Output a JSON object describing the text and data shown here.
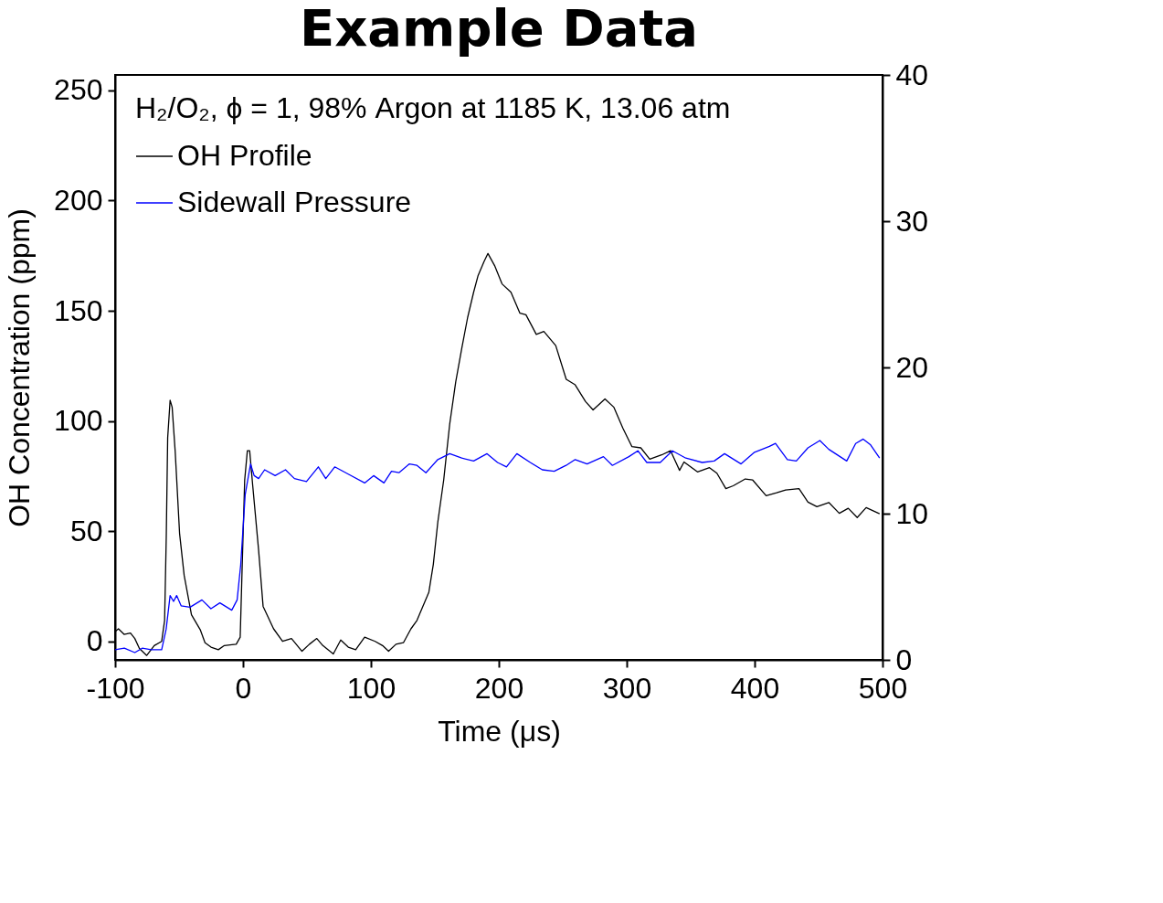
{
  "chart_data": {
    "type": "line",
    "title": "Example Data",
    "xlabel": "Time (μs)",
    "ylabel": "OH Concentration (ppm)",
    "legend_title": "H₂/O₂, ϕ = 1, 98% Argon at 1185 K, 13.06 atm",
    "legend": "top left",
    "line_style": "solid",
    "xlim": [
      -100,
      500
    ],
    "xticks": [
      -100,
      0,
      100,
      200,
      300,
      400,
      500
    ],
    "ylim": [
      -8.4,
      257
    ],
    "yticks": [
      0,
      50,
      100,
      150,
      200,
      250
    ],
    "y2lim": [
      0,
      40
    ],
    "y2ticks": [
      0,
      10,
      20,
      30,
      40
    ],
    "series": [
      {
        "name": "OH Profile",
        "color": "#000000",
        "x": [
          -100,
          -97.4,
          -93,
          -88,
          -84.6,
          -81,
          -75.3,
          -69.4,
          -63.6,
          -61.3,
          -60,
          -58.9,
          -57,
          -55.4,
          -53,
          -49.6,
          -46,
          -40.3,
          -33.3,
          -29.7,
          -25,
          -19.3,
          -14.6,
          -5.3,
          -2.2,
          -0.6,
          1.3,
          3.4,
          5.2,
          7.6,
          12.2,
          15.7,
          23.9,
          30.9,
          37.9,
          46.1,
          51.9,
          57.7,
          62.4,
          70.6,
          76.4,
          82.3,
          88.1,
          95.1,
          103.3,
          109.1,
          113.8,
          119.6,
          125.4,
          131.3,
          136,
          145.3,
          148.8,
          152.3,
          156.9,
          161.6,
          166.3,
          171,
          175.6,
          180.3,
          183.8,
          188.5,
          191.5,
          196.7,
          202.5,
          209.5,
          216.5,
          221.2,
          229.3,
          235.2,
          244.5,
          252.7,
          259.7,
          267.8,
          273.7,
          283,
          290,
          297,
          304,
          311,
          318,
          327.3,
          334.3,
          341.3,
          344.8,
          355.3,
          364.7,
          370.5,
          377.5,
          383.3,
          392.7,
          398.5,
          409,
          417.2,
          424.2,
          434.7,
          441.7,
          448.7,
          458,
          466.2,
          473.2,
          480.2,
          487.2,
          497.7
        ],
        "values": [
          4.5,
          5.7,
          3.2,
          3.8,
          1.3,
          -3.2,
          -6.4,
          -1.9,
          0,
          9.5,
          47.7,
          92.4,
          109.4,
          106.2,
          85.9,
          49,
          29.9,
          12.1,
          5.1,
          -0.6,
          -2.6,
          -3.8,
          -1.9,
          -1.3,
          1.9,
          35,
          73.2,
          86.5,
          86.5,
          70.6,
          41.3,
          15.9,
          5.7,
          0,
          1.3,
          -4.5,
          -1.3,
          1.3,
          -1.9,
          -5.7,
          0.6,
          -2.6,
          -3.8,
          1.9,
          0,
          -1.9,
          -4.5,
          -1.3,
          -0.6,
          5.7,
          9.5,
          22.3,
          35,
          54.1,
          73.2,
          98.6,
          117.7,
          132.9,
          146.9,
          158.4,
          166,
          172.4,
          176,
          170.5,
          162.2,
          158.4,
          148.9,
          148.2,
          139.3,
          140.6,
          134.2,
          118.9,
          116.4,
          108.8,
          105,
          110,
          106.2,
          96.7,
          88.4,
          87.8,
          82.7,
          84.6,
          86.5,
          77.6,
          81.4,
          76.9,
          78.8,
          76.3,
          69.3,
          70.6,
          73.7,
          73.2,
          66.1,
          67.4,
          68.7,
          69.3,
          63.2,
          61.1,
          63,
          58.1,
          60.4,
          56.2,
          60.7,
          57.9
        ]
      },
      {
        "name": "Sidewall Pressure",
        "color": "#0000ff",
        "axis": "y2",
        "x": [
          -100,
          -92.8,
          -84.6,
          -78.8,
          -71.8,
          -63.6,
          -60.1,
          -57,
          -54.3,
          -51.9,
          -48.4,
          -41.4,
          -32.1,
          -25.1,
          -18.1,
          -8.8,
          -4.6,
          -1.8,
          1.7,
          5.9,
          8.7,
          12.2,
          16.9,
          25.1,
          33.2,
          40.2,
          49.6,
          58.9,
          64.7,
          71.7,
          82.3,
          95.1,
          102.1,
          110.2,
          116.1,
          121.9,
          130.1,
          136,
          143,
          152.3,
          161.6,
          171,
          180.3,
          190.8,
          199,
          206,
          214.1,
          224.6,
          234,
          243.3,
          252.6,
          259.7,
          269,
          281.8,
          288.8,
          301.7,
          308.7,
          315.7,
          326.2,
          335.7,
          346.2,
          359,
          368.4,
          376.5,
          389.4,
          399.9,
          411.6,
          416.3,
          425.6,
          432.6,
          441.7,
          451,
          458,
          472,
          479,
          484.9,
          490.7,
          497.7
        ],
        "values": [
          0.7,
          0.8,
          0.5,
          0.8,
          0.7,
          0.7,
          2.1,
          4.4,
          4,
          4.4,
          3.7,
          3.6,
          4.1,
          3.5,
          3.9,
          3.4,
          4.1,
          6.5,
          11.3,
          13.4,
          12.6,
          12.4,
          13,
          12.6,
          13,
          12.4,
          12.2,
          13.2,
          12.4,
          13.2,
          12.7,
          12.1,
          12.6,
          12.1,
          12.9,
          12.8,
          13.4,
          13.3,
          12.8,
          13.7,
          14.1,
          13.8,
          13.6,
          14.1,
          13.5,
          13.2,
          14.1,
          13.5,
          13,
          12.9,
          13.3,
          13.7,
          13.4,
          13.9,
          13.3,
          13.9,
          14.3,
          13.5,
          13.5,
          14.3,
          13.8,
          13.5,
          13.6,
          14.1,
          13.4,
          14.2,
          14.6,
          14.8,
          13.7,
          13.6,
          14.5,
          15,
          14.4,
          13.6,
          14.8,
          15.1,
          14.7,
          13.8
        ]
      }
    ]
  }
}
